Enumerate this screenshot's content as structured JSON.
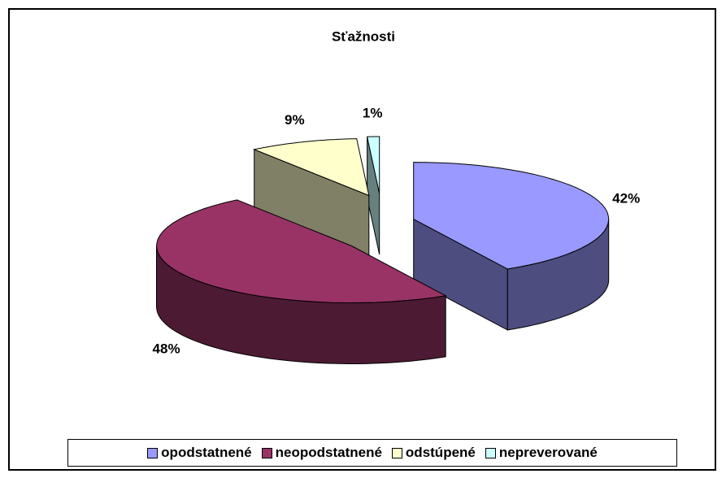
{
  "chart_data": {
    "type": "pie",
    "title": "Sťažnosti",
    "categories": [
      "opodstatnené",
      "neopodstatnené",
      "odstúpené",
      "nepreverované"
    ],
    "values": [
      42,
      48,
      9,
      1
    ],
    "value_labels": [
      "42%",
      "48%",
      "9%",
      "1%"
    ],
    "colors": [
      "#9999ff",
      "#993366",
      "#ffffcc",
      "#ccffff"
    ],
    "legend": "bottom"
  }
}
